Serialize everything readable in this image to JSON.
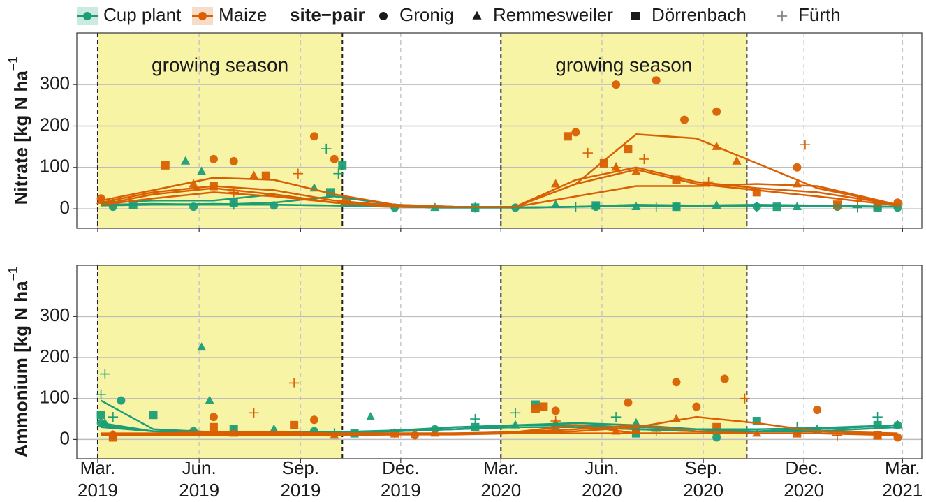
{
  "legend": {
    "title": "site−pair",
    "crops": [
      {
        "name": "Cup plant",
        "color": "#1b9e77"
      },
      {
        "name": "Maize",
        "color": "#d95f02"
      }
    ],
    "sites": [
      {
        "name": "Gronig",
        "marker": "circle"
      },
      {
        "name": "Remmesweiler",
        "marker": "triangle"
      },
      {
        "name": "Dörrenbach",
        "marker": "square"
      },
      {
        "name": "Fürth",
        "marker": "plus"
      }
    ]
  },
  "chart_data": [
    {
      "type": "scatter",
      "ylabel": "Nitrate [kg  N ha",
      "ylabel_sup": "−1",
      "xlim": [
        2019.11,
        2021.21
      ],
      "ylim": [
        -47,
        425
      ],
      "yticks": [
        0,
        100,
        200,
        300
      ],
      "grid": true,
      "xticks": [
        2019.162,
        2019.414,
        2019.666,
        2019.915,
        2020.164,
        2020.415,
        2020.667,
        2020.917,
        2021.162
      ],
      "shaded_regions": [
        {
          "x": [
            2019.162,
            2019.77
          ],
          "label": "growing season",
          "color": "#f8f4a6"
        },
        {
          "x": [
            2020.164,
            2020.775
          ],
          "label": "growing season",
          "color": "#f8f4a6"
        }
      ],
      "smooth_x": [
        2019.17,
        2019.3,
        2019.45,
        2019.6,
        2019.75,
        2019.9,
        2020.05,
        2020.2,
        2020.35,
        2020.5,
        2020.65,
        2020.8,
        2020.95,
        2021.15
      ],
      "series": [
        {
          "color": "#1b9e77",
          "marker": "circle",
          "x": [
            2019.2,
            2019.4,
            2019.6,
            2019.9,
            2020.2,
            2020.4,
            2020.6,
            2020.8,
            2021.0,
            2021.15
          ],
          "values": [
            5,
            5,
            8,
            3,
            3,
            5,
            5,
            5,
            5,
            3
          ],
          "smooth": [
            10,
            12,
            10,
            10,
            8,
            5,
            3,
            3,
            5,
            8,
            6,
            8,
            8,
            5
          ]
        },
        {
          "color": "#1b9e77",
          "marker": "triangle",
          "x": [
            2019.2,
            2019.38,
            2019.42,
            2019.7,
            2020.0,
            2020.3,
            2020.5,
            2020.7,
            2020.9,
            2021.1
          ],
          "values": [
            15,
            115,
            90,
            50,
            3,
            10,
            5,
            8,
            5,
            5
          ],
          "smooth": [
            15,
            20,
            20,
            35,
            15,
            5,
            3,
            3,
            5,
            10,
            8,
            10,
            8,
            5
          ]
        },
        {
          "color": "#1b9e77",
          "marker": "square",
          "x": [
            2019.25,
            2019.5,
            2019.74,
            2019.77,
            2020.1,
            2020.4,
            2020.6,
            2020.85,
            2021.1
          ],
          "values": [
            10,
            15,
            40,
            105,
            3,
            8,
            5,
            5,
            3
          ],
          "smooth": [
            8,
            10,
            10,
            15,
            30,
            10,
            5,
            3,
            5,
            8,
            6,
            8,
            6,
            5
          ]
        },
        {
          "color": "#1b9e77",
          "marker": "plus",
          "x": [
            2019.2,
            2019.5,
            2019.73,
            2019.76,
            2020.1,
            2020.35,
            2020.55,
            2020.8,
            2021.05
          ],
          "values": [
            10,
            10,
            145,
            85,
            3,
            5,
            5,
            5,
            3
          ],
          "smooth": [
            10,
            10,
            12,
            10,
            8,
            5,
            3,
            3,
            5,
            8,
            6,
            8,
            6,
            5
          ]
        },
        {
          "color": "#d95f02",
          "marker": "circle",
          "x": [
            2019.17,
            2019.45,
            2019.5,
            2019.7,
            2019.75,
            2020.35,
            2020.45,
            2020.55,
            2020.62,
            2020.7,
            2020.9,
            2021.15
          ],
          "values": [
            25,
            120,
            115,
            175,
            120,
            185,
            300,
            310,
            215,
            235,
            100,
            15
          ],
          "smooth": [
            20,
            45,
            75,
            70,
            35,
            10,
            5,
            5,
            60,
            180,
            170,
            110,
            50,
            10
          ]
        },
        {
          "color": "#d95f02",
          "marker": "triangle",
          "x": [
            2019.17,
            2019.4,
            2019.55,
            2020.3,
            2020.45,
            2020.5,
            2020.7,
            2020.75,
            2020.9,
            2021.1
          ],
          "values": [
            20,
            60,
            80,
            60,
            100,
            90,
            150,
            115,
            60,
            10
          ],
          "smooth": [
            15,
            40,
            55,
            45,
            20,
            8,
            5,
            5,
            70,
            100,
            65,
            50,
            40,
            10
          ]
        },
        {
          "color": "#d95f02",
          "marker": "square",
          "x": [
            2019.33,
            2019.45,
            2019.58,
            2019.78,
            2020.33,
            2020.42,
            2020.48,
            2020.6,
            2020.8,
            2021.0
          ],
          "values": [
            105,
            55,
            80,
            20,
            175,
            110,
            145,
            70,
            40,
            10
          ],
          "smooth": [
            10,
            35,
            50,
            35,
            15,
            5,
            5,
            5,
            60,
            95,
            60,
            45,
            30,
            8
          ]
        },
        {
          "color": "#d95f02",
          "marker": "plus",
          "x": [
            2019.2,
            2019.5,
            2019.66,
            2020.38,
            2020.45,
            2020.52,
            2020.68,
            2020.92,
            2021.05
          ],
          "values": [
            15,
            40,
            85,
            135,
            100,
            120,
            65,
            155,
            20
          ],
          "smooth": [
            10,
            25,
            40,
            30,
            15,
            5,
            5,
            5,
            30,
            55,
            55,
            60,
            55,
            10
          ]
        }
      ]
    },
    {
      "type": "scatter",
      "ylabel": "Ammonium [kg  N ha",
      "ylabel_sup": "−1",
      "xlim": [
        2019.11,
        2021.21
      ],
      "ylim": [
        -47,
        425
      ],
      "yticks": [
        0,
        100,
        200,
        300
      ],
      "grid": true,
      "xticks": [
        {
          "value": 2019.162,
          "label": "Mar. 2019"
        },
        {
          "value": 2019.414,
          "label": "Jun. 2019"
        },
        {
          "value": 2019.666,
          "label": "Sep. 2019"
        },
        {
          "value": 2019.915,
          "label": "Dec. 2019"
        },
        {
          "value": 2020.164,
          "label": "Mar. 2020"
        },
        {
          "value": 2020.415,
          "label": "Jun. 2020"
        },
        {
          "value": 2020.667,
          "label": "Sep. 2020"
        },
        {
          "value": 2020.917,
          "label": "Dec. 2020"
        },
        {
          "value": 2021.162,
          "label": "Mar. 2021"
        }
      ],
      "shaded_regions": [
        {
          "x": [
            2019.162,
            2019.77
          ],
          "color": "#f8f4a6"
        },
        {
          "x": [
            2020.164,
            2020.775
          ],
          "color": "#f8f4a6"
        }
      ],
      "smooth_x": [
        2019.17,
        2019.3,
        2019.45,
        2019.6,
        2019.75,
        2019.9,
        2020.05,
        2020.2,
        2020.35,
        2020.5,
        2020.65,
        2020.8,
        2020.95,
        2021.15
      ],
      "series": [
        {
          "color": "#1b9e77",
          "marker": "circle",
          "x": [
            2019.17,
            2019.22,
            2019.4,
            2019.7,
            2020.0,
            2020.3,
            2020.5,
            2020.7,
            2020.9,
            2021.15
          ],
          "values": [
            40,
            95,
            20,
            20,
            25,
            30,
            25,
            5,
            20,
            35
          ],
          "smooth": [
            35,
            20,
            18,
            18,
            18,
            20,
            25,
            30,
            30,
            25,
            20,
            20,
            20,
            30
          ]
        },
        {
          "color": "#1b9e77",
          "marker": "triangle",
          "x": [
            2019.18,
            2019.42,
            2019.44,
            2019.6,
            2019.84,
            2020.2,
            2020.5,
            2020.7,
            2020.95,
            2021.15
          ],
          "values": [
            40,
            225,
            95,
            25,
            55,
            35,
            40,
            20,
            25,
            35
          ],
          "smooth": [
            40,
            20,
            18,
            18,
            18,
            20,
            25,
            35,
            40,
            35,
            25,
            20,
            25,
            35
          ]
        },
        {
          "color": "#1b9e77",
          "marker": "square",
          "x": [
            2019.17,
            2019.3,
            2019.5,
            2019.8,
            2020.1,
            2020.25,
            2020.5,
            2020.8,
            2021.1
          ],
          "values": [
            60,
            60,
            25,
            15,
            30,
            85,
            15,
            45,
            35
          ],
          "smooth": [
            30,
            20,
            18,
            18,
            18,
            20,
            25,
            30,
            30,
            25,
            20,
            20,
            25,
            35
          ]
        },
        {
          "color": "#1b9e77",
          "marker": "plus",
          "x": [
            2019.17,
            2019.18,
            2019.2,
            2019.5,
            2019.75,
            2020.1,
            2020.2,
            2020.45,
            2020.9,
            2021.1
          ],
          "values": [
            110,
            160,
            55,
            20,
            15,
            50,
            65,
            55,
            30,
            55
          ],
          "smooth": [
            95,
            25,
            18,
            18,
            18,
            22,
            30,
            35,
            35,
            30,
            25,
            25,
            28,
            35
          ]
        },
        {
          "color": "#d95f02",
          "marker": "circle",
          "x": [
            2019.2,
            2019.45,
            2019.7,
            2019.95,
            2020.3,
            2020.48,
            2020.6,
            2020.65,
            2020.72,
            2020.95,
            2021.15
          ],
          "values": [
            10,
            55,
            48,
            10,
            70,
            90,
            140,
            80,
            148,
            72,
            5
          ],
          "smooth": [
            15,
            15,
            18,
            18,
            15,
            15,
            15,
            15,
            20,
            30,
            55,
            40,
            20,
            15
          ]
        },
        {
          "color": "#d95f02",
          "marker": "triangle",
          "x": [
            2019.2,
            2019.5,
            2019.75,
            2020.0,
            2020.3,
            2020.45,
            2020.6,
            2020.8,
            2021.1
          ],
          "values": [
            10,
            15,
            10,
            15,
            40,
            20,
            50,
            15,
            10
          ],
          "smooth": [
            12,
            15,
            15,
            15,
            15,
            15,
            15,
            18,
            35,
            15,
            15,
            15,
            15,
            12
          ]
        },
        {
          "color": "#d95f02",
          "marker": "square",
          "x": [
            2019.2,
            2019.45,
            2019.65,
            2019.9,
            2020.25,
            2020.27,
            2020.5,
            2020.7,
            2020.9,
            2021.1
          ],
          "values": [
            5,
            30,
            35,
            15,
            75,
            80,
            25,
            30,
            15,
            10
          ],
          "smooth": [
            12,
            12,
            12,
            12,
            12,
            12,
            15,
            18,
            25,
            35,
            20,
            15,
            15,
            12
          ]
        },
        {
          "color": "#d95f02",
          "marker": "plus",
          "x": [
            2019.2,
            2019.55,
            2019.65,
            2019.9,
            2020.3,
            2020.55,
            2020.77,
            2021.0
          ],
          "values": [
            10,
            65,
            138,
            15,
            45,
            20,
            100,
            10
          ],
          "smooth": [
            10,
            10,
            10,
            10,
            10,
            12,
            12,
            15,
            15,
            15,
            15,
            15,
            15,
            10
          ]
        }
      ]
    }
  ]
}
